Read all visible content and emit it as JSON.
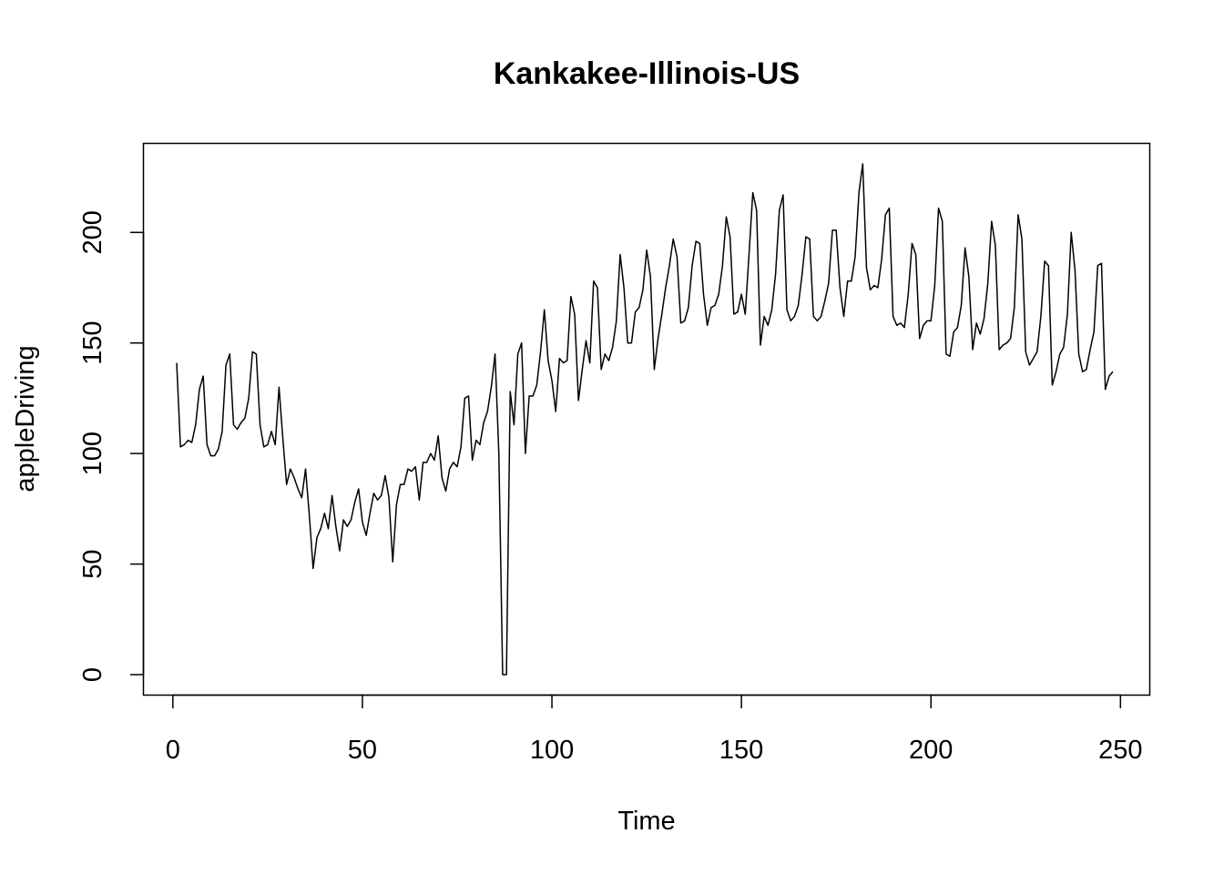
{
  "chart_data": {
    "type": "line",
    "title": "Kankakee-Illinois-US",
    "xlabel": "Time",
    "ylabel": "appleDriving",
    "xlim": [
      1,
      248
    ],
    "ylim": [
      0,
      231
    ],
    "x_ticks": [
      0,
      50,
      100,
      150,
      200,
      250
    ],
    "x_tick_labels": [
      "0",
      "50",
      "100",
      "150",
      "200",
      "250"
    ],
    "y_ticks": [
      0,
      50,
      100,
      150,
      200
    ],
    "y_tick_labels": [
      "0",
      "50",
      "100",
      "150",
      "200"
    ],
    "grid": false,
    "legend": null,
    "series": [
      {
        "name": "appleDriving",
        "color": "#000000",
        "values": [
          141,
          103,
          104,
          106,
          105,
          113,
          129,
          135,
          104,
          99,
          99,
          102,
          110,
          140,
          145,
          113,
          111,
          114,
          116,
          125,
          146,
          145,
          113,
          103,
          104,
          110,
          104,
          130,
          107,
          86,
          93,
          89,
          84,
          80,
          93,
          72,
          48,
          62,
          66,
          73,
          66,
          81,
          67,
          56,
          70,
          67,
          70,
          78,
          84,
          69,
          63,
          73,
          82,
          79,
          81,
          90,
          80,
          51,
          77,
          86,
          86,
          93,
          92,
          94,
          79,
          96,
          96,
          100,
          97,
          108,
          89,
          83,
          93,
          96,
          94,
          103,
          125,
          126,
          97,
          106,
          104,
          114,
          119,
          130,
          145,
          100,
          0,
          0,
          128,
          113,
          145,
          150,
          100,
          126,
          126,
          131,
          146,
          165,
          142,
          133,
          119,
          143,
          141,
          142,
          171,
          163,
          124,
          138,
          151,
          141,
          178,
          175,
          138,
          145,
          142,
          148,
          160,
          190,
          175,
          150,
          150,
          164,
          166,
          174,
          192,
          180,
          138,
          152,
          163,
          175,
          185,
          197,
          189,
          159,
          160,
          166,
          185,
          196,
          195,
          172,
          158,
          166,
          167,
          172,
          185,
          207,
          198,
          163,
          164,
          172,
          163,
          190,
          218,
          210,
          149,
          162,
          158,
          165,
          181,
          210,
          217,
          165,
          160,
          162,
          167,
          181,
          198,
          197,
          162,
          160,
          162,
          169,
          177,
          201,
          201,
          175,
          162,
          178,
          178,
          189,
          218,
          231,
          184,
          174,
          176,
          175,
          188,
          208,
          211,
          162,
          158,
          159,
          157,
          172,
          195,
          190,
          152,
          158,
          160,
          160,
          176,
          211,
          205,
          145,
          144,
          155,
          157,
          167,
          193,
          180,
          147,
          159,
          154,
          161,
          177,
          205,
          194,
          147,
          149,
          150,
          152,
          166,
          208,
          197,
          146,
          140,
          143,
          146,
          162,
          187,
          185,
          131,
          137,
          145,
          148,
          163,
          200,
          183,
          145,
          137,
          138,
          147,
          155,
          185,
          186,
          129,
          135,
          137
        ]
      }
    ]
  }
}
